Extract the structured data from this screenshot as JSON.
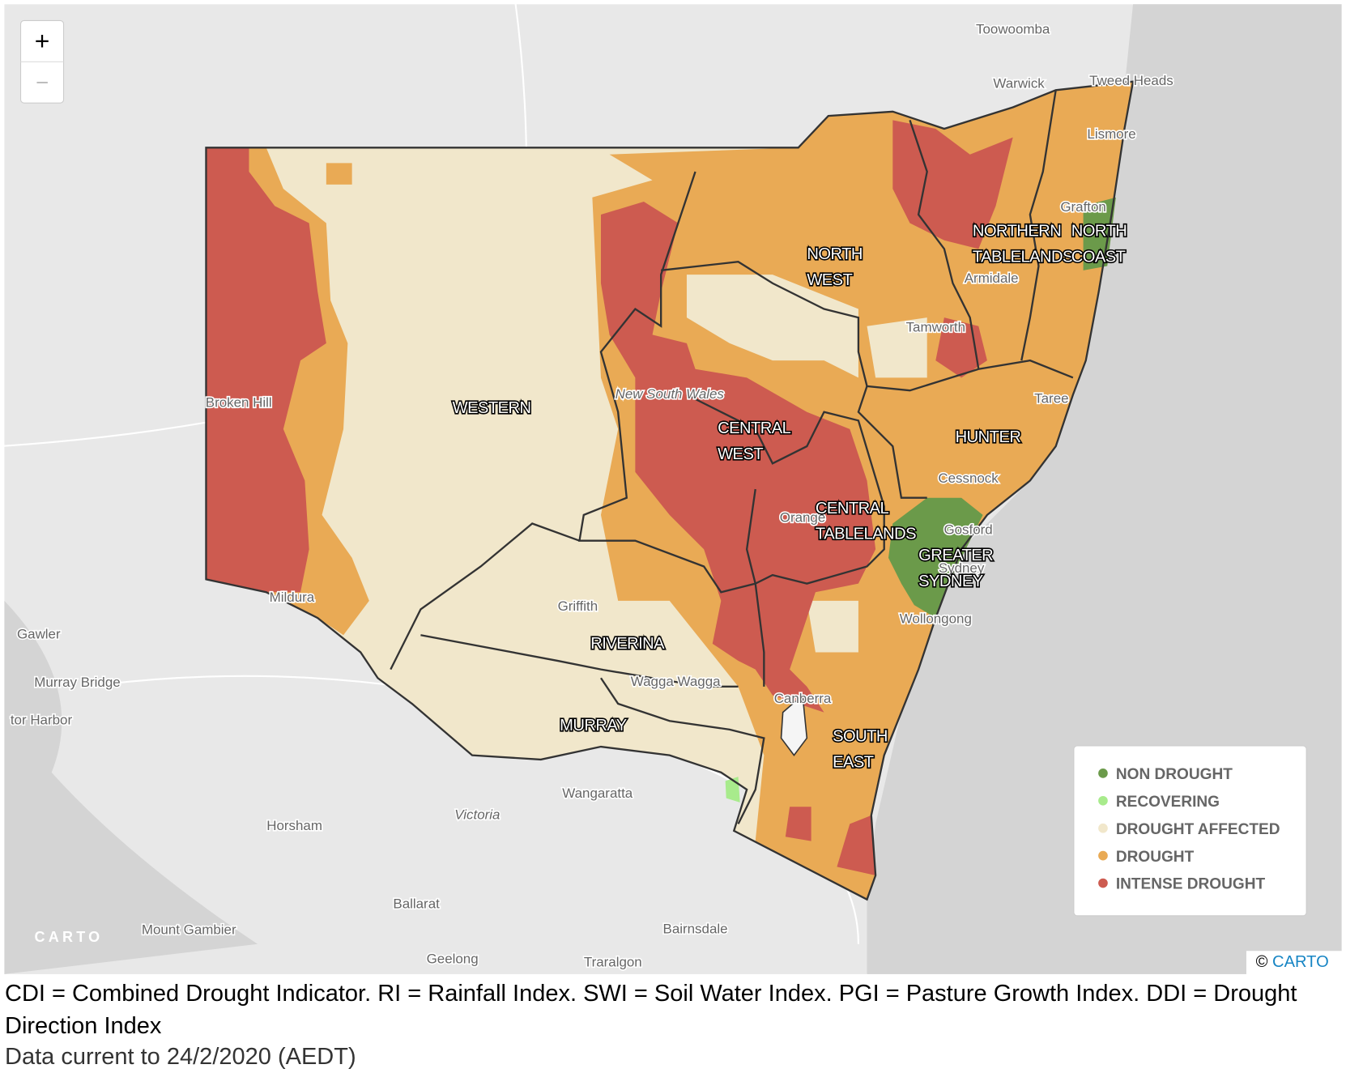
{
  "zoom": {
    "in": "+",
    "out": "−"
  },
  "regions": [
    {
      "lines": [
        "WESTERN"
      ]
    },
    {
      "lines": [
        "NORTH",
        "WEST"
      ]
    },
    {
      "lines": [
        "NORTHERN",
        "TABLELANDS"
      ]
    },
    {
      "lines": [
        "NORTH",
        "COAST"
      ]
    },
    {
      "lines": [
        "CENTRAL",
        "WEST"
      ]
    },
    {
      "lines": [
        "HUNTER"
      ]
    },
    {
      "lines": [
        "CENTRAL",
        "TABLELANDS"
      ]
    },
    {
      "lines": [
        "GREATER",
        "SYDNEY"
      ]
    },
    {
      "lines": [
        "RIVERINA"
      ]
    },
    {
      "lines": [
        "MURRAY"
      ]
    },
    {
      "lines": [
        "SOUTH",
        "EAST"
      ]
    }
  ],
  "places": [
    "Toowoomba",
    "Warwick",
    "Tweed Heads",
    "Lismore",
    "Grafton",
    "Armidale",
    "Tamworth",
    "Taree",
    "Cessnock",
    "Gosford",
    "Sydney",
    "Wollongong",
    "Canberra",
    "Orange",
    "Griffith",
    "Wagga Wagga",
    "Broken Hill",
    "Mildura",
    "New South Wales",
    "Victoria",
    "Wangaratta",
    "Horsham",
    "Ballarat",
    "Mount Gambier",
    "Bairnsdale",
    "Geelong",
    "Traralgon",
    "Gawler",
    "Murray Bridge",
    "tor Harbor"
  ],
  "legend": [
    {
      "label": "NON DROUGHT",
      "color": "#6b9a4a"
    },
    {
      "label": "RECOVERING",
      "color": "#a8eb8c"
    },
    {
      "label": "DROUGHT AFFECTED",
      "color": "#f1e7cb"
    },
    {
      "label": "DROUGHT",
      "color": "#e9aa55"
    },
    {
      "label": "INTENSE DROUGHT",
      "color": "#cd5b50"
    }
  ],
  "carto_logo": "CARTO",
  "attribution": {
    "symbol": "©",
    "link": "CARTO"
  },
  "caption": "CDI = Combined Drought Indicator. RI = Rainfall Index. SWI = Soil Water Index. PGI = Pasture Growth Index. DDI = Drought Direction Index",
  "data_current": "Data current to 24/2/2020 (AEDT)"
}
